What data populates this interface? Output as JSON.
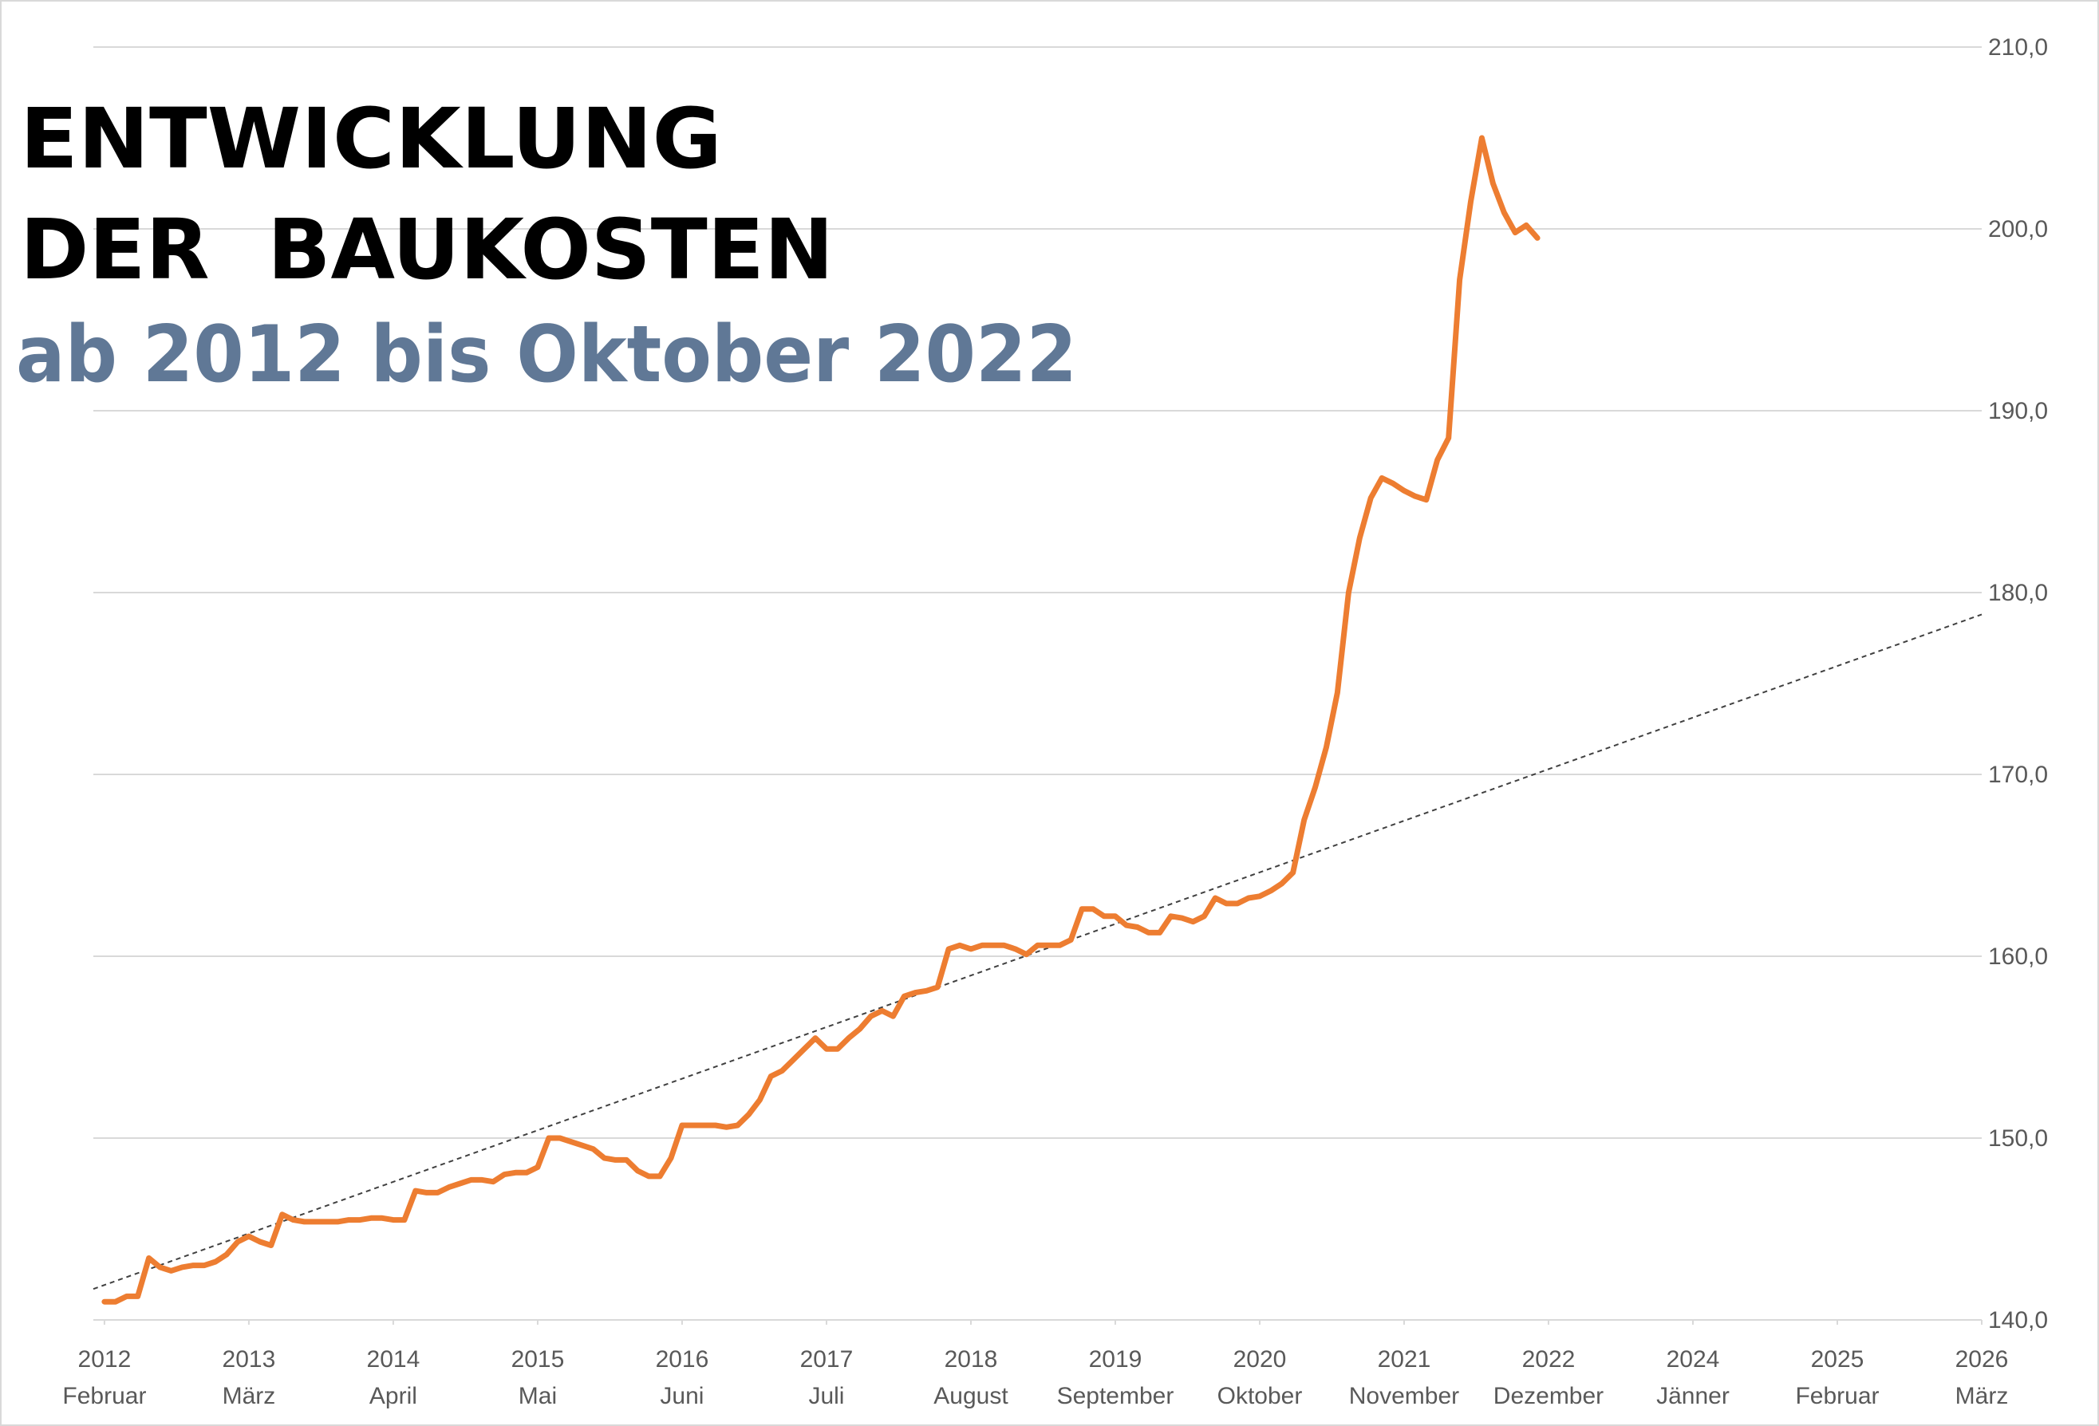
{
  "chart_data": {
    "type": "line",
    "title": [
      "ENTWICKLUNG",
      "DER  BAUKOSTEN"
    ],
    "subtitle": "ab 2012 bis Oktober 2022",
    "xlim": [
      -1,
      169
    ],
    "xticks": [
      {
        "value": 0,
        "label": [
          "2012",
          "Februar"
        ]
      },
      {
        "value": 13,
        "label": [
          "2013",
          "März"
        ]
      },
      {
        "value": 26,
        "label": [
          "2014",
          "April"
        ]
      },
      {
        "value": 39,
        "label": [
          "2015",
          "Mai"
        ]
      },
      {
        "value": 52,
        "label": [
          "2016",
          "Juni"
        ]
      },
      {
        "value": 65,
        "label": [
          "2017",
          "Juli"
        ]
      },
      {
        "value": 78,
        "label": [
          "2018",
          "August"
        ]
      },
      {
        "value": 91,
        "label": [
          "2019",
          "September"
        ]
      },
      {
        "value": 104,
        "label": [
          "2020",
          "Oktober"
        ]
      },
      {
        "value": 117,
        "label": [
          "2021",
          "November"
        ]
      },
      {
        "value": 130,
        "label": [
          "2022",
          "Dezember"
        ]
      },
      {
        "value": 143,
        "label": [
          "2024",
          "Jänner"
        ]
      },
      {
        "value": 156,
        "label": [
          "2025",
          "Februar"
        ]
      },
      {
        "value": 169,
        "label": [
          "2026",
          "März"
        ]
      }
    ],
    "ylim": [
      140,
      210
    ],
    "yticks": [
      {
        "value": 140,
        "label": "140,0"
      },
      {
        "value": 150,
        "label": "150,0"
      },
      {
        "value": 160,
        "label": "160,0"
      },
      {
        "value": 170,
        "label": "170,0"
      },
      {
        "value": 180,
        "label": "180,0"
      },
      {
        "value": 190,
        "label": "190,0"
      },
      {
        "value": 200,
        "label": "200,0"
      },
      {
        "value": 210,
        "label": "210,0"
      }
    ],
    "grid": true,
    "series": [
      {
        "color": "#ed7d31",
        "x": [
          0,
          1,
          2,
          3,
          4,
          5,
          6,
          7,
          8,
          9,
          10,
          11,
          12,
          13,
          14,
          15,
          16,
          17,
          18,
          19,
          20,
          21,
          22,
          23,
          24,
          25,
          26,
          27,
          28,
          29,
          30,
          31,
          32,
          33,
          34,
          35,
          36,
          37,
          38,
          39,
          40,
          41,
          42,
          43,
          44,
          45,
          46,
          47,
          48,
          49,
          50,
          51,
          52,
          53,
          54,
          55,
          56,
          57,
          58,
          59,
          60,
          61,
          62,
          63,
          64,
          65,
          66,
          67,
          68,
          69,
          70,
          71,
          72,
          73,
          74,
          75,
          76,
          77,
          78,
          79,
          80,
          81,
          82,
          83,
          84,
          85,
          86,
          87,
          88,
          89,
          90,
          91,
          92,
          93,
          94,
          95,
          96,
          97,
          98,
          99,
          100,
          101,
          102,
          103,
          104,
          105,
          106,
          107,
          108,
          109,
          110,
          111,
          112,
          113,
          114,
          115,
          116,
          117,
          118,
          119,
          120,
          121,
          122,
          123,
          124,
          125,
          126,
          127,
          128,
          129
        ],
        "values": [
          141.0,
          141.0,
          141.3,
          141.3,
          143.4,
          142.9,
          142.7,
          142.9,
          143.0,
          143.0,
          143.2,
          143.6,
          144.3,
          144.6,
          144.3,
          144.1,
          145.8,
          145.5,
          145.4,
          145.4,
          145.4,
          145.4,
          145.5,
          145.5,
          145.6,
          145.6,
          145.5,
          145.5,
          147.1,
          147.0,
          147.0,
          147.3,
          147.5,
          147.7,
          147.7,
          147.6,
          148.0,
          148.1,
          148.1,
          148.4,
          150.0,
          150.0,
          149.8,
          149.6,
          149.4,
          148.9,
          148.8,
          148.8,
          148.2,
          147.9,
          147.9,
          148.9,
          150.7,
          150.7,
          150.7,
          150.7,
          150.6,
          150.7,
          151.3,
          152.1,
          153.4,
          153.7,
          154.3,
          154.9,
          155.5,
          154.9,
          154.9,
          155.5,
          156.0,
          156.7,
          157.0,
          156.7,
          157.8,
          158.0,
          158.1,
          158.3,
          160.4,
          160.6,
          160.4,
          160.6,
          160.6,
          160.6,
          160.4,
          160.1,
          160.6,
          160.6,
          160.6,
          160.9,
          162.6,
          162.6,
          162.2,
          162.2,
          161.7,
          161.6,
          161.3,
          161.3,
          162.2,
          162.1,
          161.9,
          162.2,
          163.2,
          162.9,
          162.9,
          163.2,
          163.3,
          163.6,
          164.0,
          164.6,
          167.5,
          169.3,
          171.5,
          174.5,
          180.0,
          183.0,
          185.2,
          186.3,
          186.0,
          185.6,
          185.3,
          185.1,
          187.3,
          188.5,
          197.2,
          201.5,
          205.0,
          202.5,
          200.9,
          199.8,
          200.2,
          199.5
        ]
      }
    ],
    "trendline": {
      "color": "#404040",
      "x": [
        -1,
        169
      ],
      "values": [
        141.7,
        178.8
      ]
    }
  }
}
